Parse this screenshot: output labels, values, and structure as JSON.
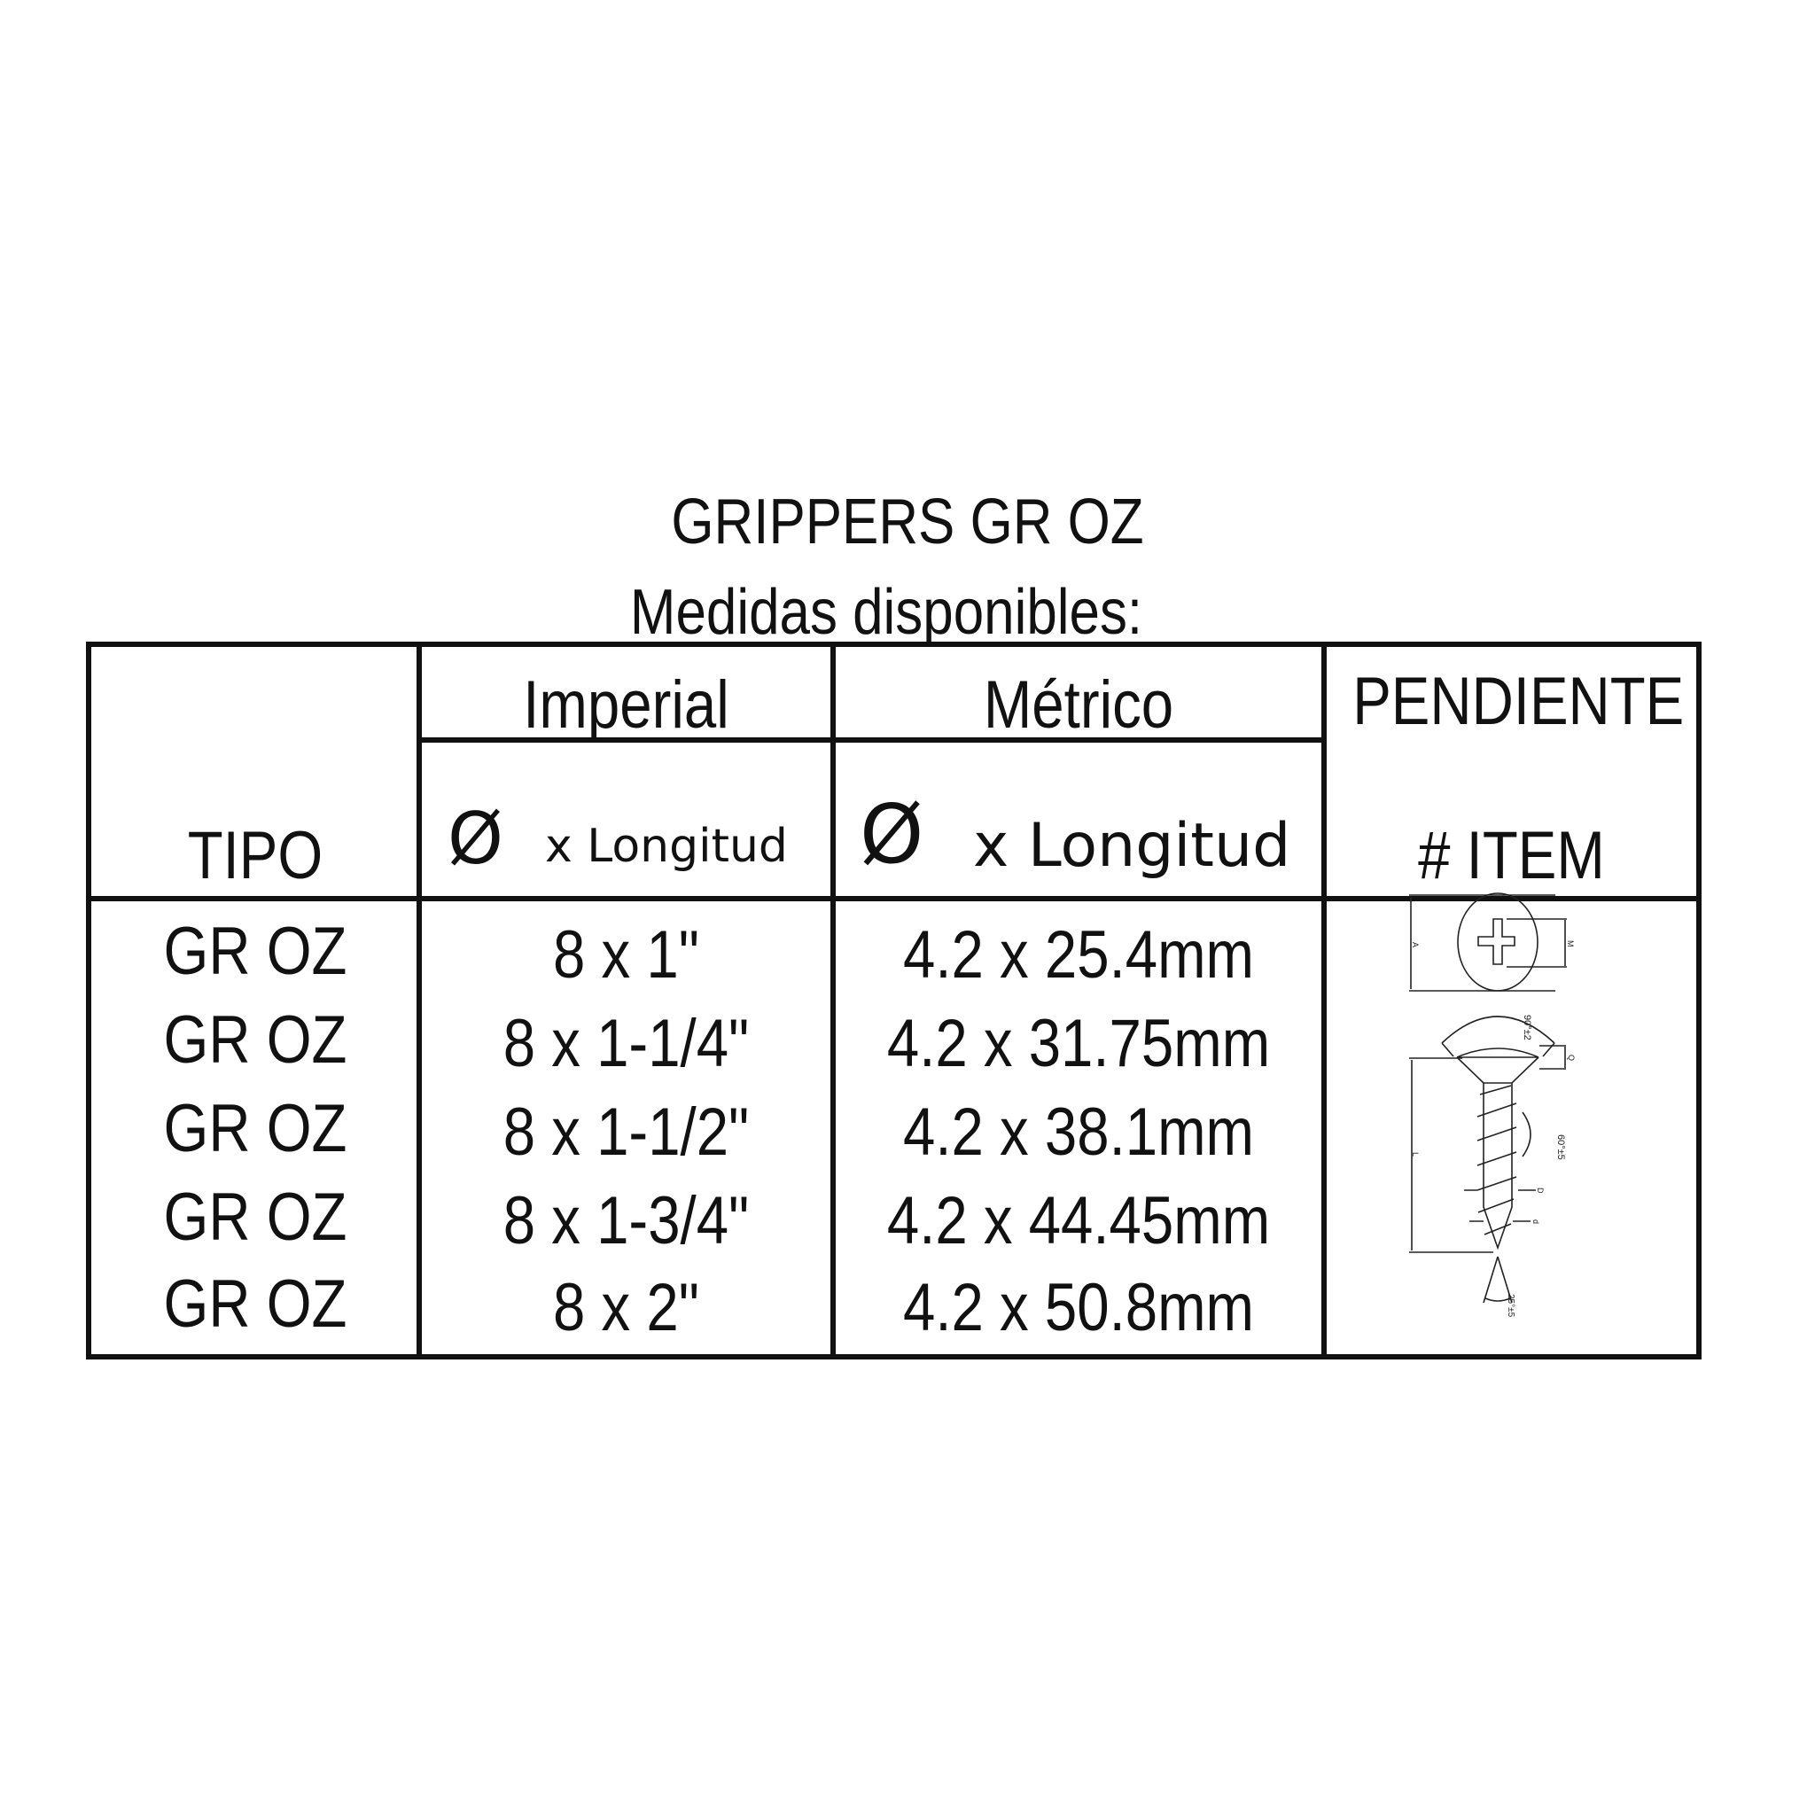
{
  "title": "GRIPPERS GR OZ",
  "subtitle": "Medidas disponibles:",
  "table": {
    "headers": {
      "tipo": "TIPO",
      "imperial": "Imperial",
      "imperial_sub_symbol": "Ø",
      "imperial_sub": "x Longitud",
      "metrico": "Métrico",
      "metrico_sub_symbol": "Ø",
      "metrico_sub": "x Longitud",
      "pendiente": "PENDIENTE",
      "item": "# ITEM"
    },
    "rows": [
      {
        "tipo": "GR OZ",
        "imperial": "8 x 1\"",
        "metrico": "4.2 x 25.4mm"
      },
      {
        "tipo": "GR OZ",
        "imperial": "8 x 1-1/4\"",
        "metrico": "4.2 x 31.75mm"
      },
      {
        "tipo": "GR OZ",
        "imperial": "8 x 1-1/2\"",
        "metrico": "4.2 x 38.1mm"
      },
      {
        "tipo": "GR OZ",
        "imperial": "8 x 1-3/4\"",
        "metrico": "4.2 x 44.45mm"
      },
      {
        "tipo": "GR OZ",
        "imperial": "8 x 2\"",
        "metrico": "4.2 x 50.8mm"
      }
    ]
  },
  "drawing": {
    "icon": "screw-technical-drawing",
    "labels": {
      "a": "A",
      "m": "M",
      "head_angle": "90°±2",
      "q": "Q",
      "thread_angle": "60°±5",
      "l": "L",
      "d_major": "D",
      "d_minor": "d",
      "tip_angle": "25°±5"
    }
  }
}
